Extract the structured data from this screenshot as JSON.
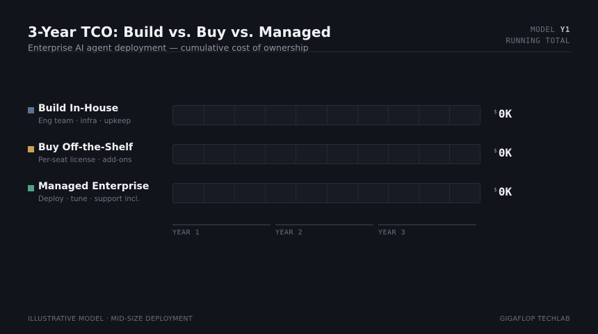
{
  "header": {
    "title": "3-Year TCO: Build vs. Buy vs. Managed",
    "subtitle": "Enterprise AI agent deployment — cumulative cost of ownership",
    "model_label": "MODEL",
    "model_year": "Y1",
    "running_total_label": "RUNNING TOTAL"
  },
  "rows": [
    {
      "name": "Build In-House",
      "desc": "Eng team · infra · upkeep",
      "currency": "$",
      "value": "0K",
      "color": "#5a7394",
      "fill_fraction": 0
    },
    {
      "name": "Buy Off-the-Shelf",
      "desc": "Per-seat license · add-ons",
      "currency": "$",
      "value": "0K",
      "color": "#c9a25a",
      "fill_fraction": 0
    },
    {
      "name": "Managed Enterprise",
      "desc": "Deploy · tune · support incl.",
      "currency": "$",
      "value": "0K",
      "color": "#4fa383",
      "fill_fraction": 0
    }
  ],
  "axis": {
    "labels": [
      "YEAR 1",
      "YEAR 2",
      "YEAR 3"
    ]
  },
  "footer": {
    "left": "ILLUSTRATIVE MODEL · MID-SIZE DEPLOYMENT",
    "right": "GIGAFLOP TECHLAB"
  }
}
